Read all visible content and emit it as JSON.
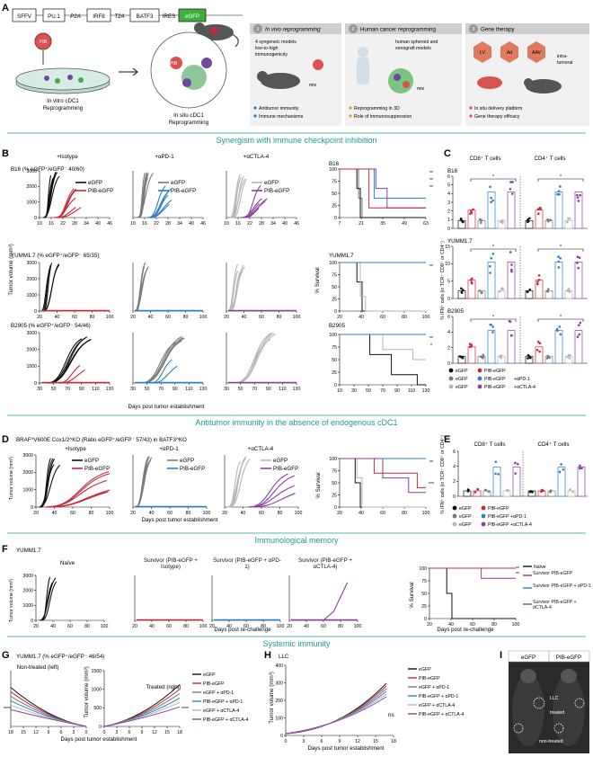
{
  "colors": {
    "black": "#111111",
    "red": "#c8283a",
    "gray": "#7a7a7a",
    "lgray": "#b6b6b6",
    "blue": "#2b7fc8",
    "purple": "#8a3f9e",
    "teal": "#1a9c9a",
    "green": "#3fae3f"
  },
  "sections": {
    "s1": "Synergism with immune checkpoint inhibition",
    "s2": "Antitumor immunity in the absence of endogenous cDC1",
    "s3": "Immunological memory",
    "s4": "Systemic immunity"
  },
  "panelA": {
    "letter": "A",
    "construct": [
      "SFFV",
      "PU.1",
      "P2A",
      "IRF8",
      "T2A",
      "BATF3",
      "IRES",
      "eGFP"
    ],
    "pib": "PIB",
    "vitro": [
      "In vitro cDC1",
      "Reprogramming"
    ],
    "situ": [
      "In situ cDC1",
      "Reprogramming"
    ],
    "mix": "mix",
    "boxes": [
      {
        "num": "1",
        "title": "In vivo reprogramming",
        "lines": [
          "4 syngeneic models",
          "low-to-high",
          "immunogenicity"
        ],
        "bullets": [
          "Antitumor immunity",
          "Immune mechanisms"
        ]
      },
      {
        "num": "2",
        "title": "Human cancer reprogramming",
        "lines": [
          "human spheroid and",
          "xenograft models"
        ],
        "bullets": [
          "Reprogramming in 3D",
          "Role of immunosuppression"
        ]
      },
      {
        "num": "3",
        "title": "Gene therapy",
        "lines": [
          "LV",
          "Ad",
          "AAV",
          "intra-",
          "tumoral"
        ],
        "bullets": [
          "In situ delivery platform",
          "Gene therapy efficacy"
        ]
      }
    ]
  },
  "panelB": {
    "letter": "B",
    "col_titles": [
      "+Isotype",
      "+αPD-1",
      "+αCTLA-4"
    ],
    "ylabel": "Tumor volume (mm³)",
    "surv_ylabel": "% Survival",
    "xlabel": "Days post tumor establishment",
    "yticks": [
      "3000",
      "2000",
      "1000",
      "0"
    ],
    "rows": [
      {
        "label": "B16 (% eGFP⁺/eGFP⁻ 40/60)",
        "xticks": [
          "10",
          "16",
          "22",
          "28",
          "34",
          "40",
          "46"
        ],
        "surv_label": "B16",
        "surv_xticks": [
          "7",
          "21",
          "35",
          "49",
          "63"
        ],
        "surv_sig": [
          "**",
          "**",
          "**"
        ]
      },
      {
        "label": "YUMM1.7 (% eGFP⁺/eGFP⁻ 65/35)",
        "xticks": [
          "20",
          "40",
          "60",
          "80",
          "100"
        ],
        "surv_label": "YUMM1.7",
        "surv_xticks": [
          "20",
          "40",
          "60",
          "80",
          "100"
        ],
        "surv_sig": [
          "**"
        ]
      },
      {
        "label": "B2905 (% eGFP⁺/eGFP⁻ 54/46)",
        "xticks": [
          "30",
          "50",
          "70",
          "90",
          "110",
          "130"
        ],
        "surv_label": "B2905",
        "surv_xticks": [
          "10",
          "30",
          "50",
          "70",
          "90",
          "110",
          "130"
        ],
        "surv_sig": [
          "**",
          "*"
        ]
      }
    ],
    "legends": [
      [
        "eGFP",
        "PIB-eGFP"
      ],
      [
        "eGFP",
        "PIB-eGFP"
      ],
      [
        "eGFP",
        "PIB-eGFP"
      ]
    ],
    "surv_yticks": [
      "100",
      "75",
      "50",
      "25",
      "0"
    ]
  },
  "panelC": {
    "letter": "C",
    "headers": [
      "CD8⁺ T cells",
      "CD4⁺ T cells"
    ],
    "ylabel": "% IFN⁺ cells (in TCR⁺ CD8⁺ or CD4⁺)",
    "rows": [
      {
        "label": "B16",
        "yticks": [
          "6",
          "5",
          "4",
          "3",
          "2",
          "1",
          "0"
        ]
      },
      {
        "label": "YUMM1.7",
        "yticks": [
          "15",
          "10",
          "5",
          "0"
        ]
      },
      {
        "label": "B2905",
        "yticks": [
          "6",
          "4",
          "2",
          "0"
        ]
      }
    ],
    "legend": [
      "eGFP",
      "PIB-eGFP",
      "eGFP",
      "PIB-eGFP",
      "eGFP",
      "PIB-eGFP"
    ],
    "legend_suffix": [
      "+αPD-1",
      "+αCTLA-4"
    ]
  },
  "panelD": {
    "letter": "D",
    "title": "BRAF^V600E Cox1/2^KO (Ratio eGFP⁺/eGFP⁻ 57/43) in BATF3^KO",
    "col_titles": [
      "+Isotype",
      "+αPD-1",
      "+αCTLA-4"
    ],
    "ylabel": "Tumor volume (mm³)",
    "yticks": [
      "3000",
      "2000",
      "1000",
      "0"
    ],
    "xticks": [
      "20",
      "40",
      "60",
      "80",
      "100"
    ],
    "xlabel": "Days post tumor establishment",
    "legends": [
      [
        "eGFP",
        "PIB-eGFP"
      ],
      [
        "eGFP",
        "PIB-eGFP"
      ],
      [
        "eGFP",
        "PIB-eGFP"
      ]
    ],
    "surv_ylabel": "% Survival",
    "surv_sig": [
      "**",
      "***"
    ]
  },
  "panelE": {
    "letter": "E",
    "headers": [
      "CD8⁺ T cells",
      "CD4⁺ T cells"
    ],
    "ylabel": "% IFN⁺ cells (in TCR⁺ CD8⁺ or CD4⁺)",
    "yticks": [
      "6",
      "4",
      "2",
      "0"
    ],
    "legend": [
      "eGFP",
      "PIB-eGFP",
      "eGFP",
      "PIB-eGFP +αPD-1",
      "eGFP",
      "PIB-eGFP +αCTLA-4"
    ]
  },
  "panelF": {
    "letter": "F",
    "model": "YUMM1.7",
    "titles": [
      "Naïve",
      "Survivor (PIB-eGFP + Isotype)",
      "Survivor (PIB-eGFP + αPD-1)",
      "Survivor (PIB-eGFP + αCTLA-4)"
    ],
    "ylabel": "Tumor volume (mm³)",
    "yticks": [
      "3000",
      "2000",
      "1000",
      "0"
    ],
    "xticks": [
      "20",
      "40",
      "60",
      "80",
      "100"
    ],
    "xlabel": "Days post re-challenge",
    "surv_ylabel": "% Survival",
    "surv_xlabel": "Days post re-challenge",
    "legend": [
      "Naïve",
      "Survivor PIB-eGFP",
      "Survivor PIB-eGFP + αPD-1",
      "Survivor PIB-eGFP + αCTLA-4"
    ],
    "sig": [
      "**",
      "**"
    ]
  },
  "panelG": {
    "letter": "G",
    "title": "YUMM1.7 (% eGFP⁺/eGFP⁻ 46/54)",
    "left": "Non-treated (left)",
    "right": "Treated (right)",
    "ylabel": "Tumor volume (mm³)",
    "yticks": [
      "1500",
      "1000",
      "500",
      "0"
    ],
    "xticks": [
      "18",
      "15",
      "12",
      "9",
      "6",
      "3",
      "0",
      "3",
      "6",
      "9",
      "12",
      "15",
      "18"
    ],
    "xlabel": "Days post tumor establishment",
    "legend": [
      "eGFP",
      "PIB-eGFP",
      "eGFP + αPD-1",
      "PIB-eGFP + αPD-1",
      "eGFP + αCTLA-4",
      "PIB-eGFP + αCTLA-4"
    ]
  },
  "panelH": {
    "letter": "H",
    "title": "LLC",
    "ylabel": "Tumor volume (mm³)",
    "yticks": [
      "400",
      "300",
      "200",
      "100",
      "0"
    ],
    "xticks": [
      "0",
      "3",
      "6",
      "9",
      "12",
      "15",
      "18"
    ],
    "xlabel": "Days post tumor establishment",
    "ns": "ns",
    "legend": [
      "eGFP",
      "PIB-eGFP",
      "eGFP + αPD-1",
      "PIB-eGFP + αPD-1",
      "eGFP + αCTLA-4",
      "PIB-eGFP + αCTLA-4"
    ]
  },
  "panelI": {
    "letter": "I",
    "labels": [
      "eGFP",
      "PIB-eGFP"
    ],
    "photo_labels": [
      "LLC",
      "treated",
      "non-treated"
    ]
  }
}
